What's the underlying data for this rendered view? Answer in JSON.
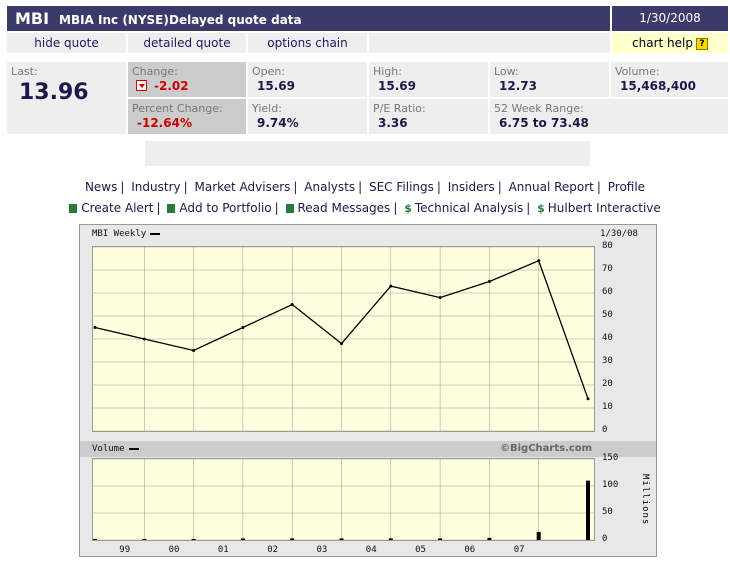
{
  "header": {
    "symbol": "MBI",
    "company": "MBIA Inc (NYSE)",
    "delayed": "Delayed quote data",
    "date": "1/30/2008"
  },
  "links": {
    "hide_quote": "hide quote",
    "detailed_quote": "detailed quote",
    "options_chain": "options chain",
    "chart_help": "chart help",
    "help_icon": "?"
  },
  "quote": {
    "last_label": "Last:",
    "last_value": "13.96",
    "change_label": "Change:",
    "change_value": "-2.02",
    "pct_change_label": "Percent Change:",
    "pct_change_value": "-12.64%",
    "open_label": "Open:",
    "open_value": "15.69",
    "yield_label": "Yield:",
    "yield_value": "9.74%",
    "high_label": "High:",
    "high_value": "15.69",
    "pe_label": "P/E Ratio:",
    "pe_value": "3.36",
    "low_label": "Low:",
    "low_value": "12.73",
    "range_label": "52 Week Range:",
    "range_value": "6.75 to 73.48",
    "volume_label": "Volume:",
    "volume_value": "15,468,400"
  },
  "nav1": [
    "News",
    "Industry",
    "Market Advisers",
    "Analysts",
    "SEC Filings",
    "Insiders",
    "Annual Report",
    "Profile"
  ],
  "nav2": [
    "Create Alert",
    "Add to Portfolio",
    "Read Messages",
    "Technical Analysis",
    "Hulbert Interactive"
  ],
  "colors": {
    "header_bg": "#3b3b6b",
    "plot_bg": "#ffffdd",
    "negative": "#cc0000",
    "nav_icon": "#2a7a3a"
  },
  "chart_data": [
    {
      "type": "line",
      "title": "MBI Weekly",
      "date_label": "1/30/08",
      "credit": "©BigCharts.com",
      "x": [
        "98",
        "99",
        "00",
        "01",
        "02",
        "03",
        "04",
        "05",
        "06",
        "07",
        "08"
      ],
      "y": [
        45,
        40,
        35,
        45,
        55,
        38,
        63,
        58,
        65,
        74,
        14
      ],
      "xtick_labels": [
        "99",
        "00",
        "01",
        "02",
        "03",
        "04",
        "05",
        "06",
        "07"
      ],
      "ytick_labels": [
        "0",
        "10",
        "20",
        "30",
        "40",
        "50",
        "60",
        "70",
        "80"
      ],
      "ylim": [
        0,
        80
      ],
      "grid": true
    },
    {
      "type": "bar",
      "title": "Volume",
      "ylabel": "Millions",
      "x": [
        "98",
        "99",
        "00",
        "01",
        "02",
        "03",
        "04",
        "05",
        "06",
        "07",
        "08"
      ],
      "values": [
        2,
        2,
        2,
        3,
        3,
        3,
        3,
        3,
        4,
        15,
        110
      ],
      "ytick_labels": [
        "0",
        "50",
        "100",
        "150"
      ],
      "ylim": [
        0,
        150
      ],
      "grid": true
    }
  ]
}
